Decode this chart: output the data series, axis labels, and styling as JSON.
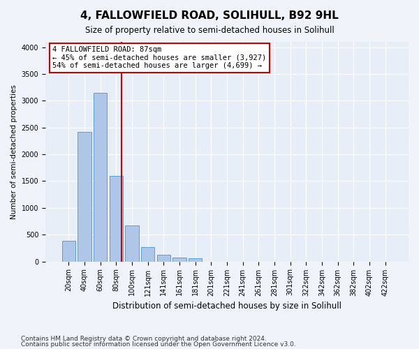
{
  "title1": "4, FALLOWFIELD ROAD, SOLIHULL, B92 9HL",
  "title2": "Size of property relative to semi-detached houses in Solihull",
  "xlabel": "Distribution of semi-detached houses by size in Solihull",
  "ylabel": "Number of semi-detached properties",
  "bar_labels": [
    "20sqm",
    "40sqm",
    "60sqm",
    "80sqm",
    "100sqm",
    "121sqm",
    "141sqm",
    "161sqm",
    "181sqm",
    "201sqm",
    "221sqm",
    "241sqm",
    "261sqm",
    "281sqm",
    "301sqm",
    "322sqm",
    "342sqm",
    "362sqm",
    "382sqm",
    "402sqm",
    "422sqm"
  ],
  "bar_values": [
    390,
    2420,
    3150,
    1600,
    670,
    270,
    120,
    70,
    60,
    0,
    0,
    0,
    0,
    0,
    0,
    0,
    0,
    0,
    0,
    0,
    0
  ],
  "bar_color": "#aec6e8",
  "bar_edge_color": "#5a9fd4",
  "property_line_x": 3.5,
  "property_sqm": 87,
  "annotation_text": "4 FALLOWFIELD ROAD: 87sqm\n← 45% of semi-detached houses are smaller (3,927)\n54% of semi-detached houses are larger (4,699) →",
  "annotation_box_color": "#ffffff",
  "annotation_box_edge_color": "#cc0000",
  "red_line_color": "#cc0000",
  "ylim": [
    0,
    4100
  ],
  "footer1": "Contains HM Land Registry data © Crown copyright and database right 2024.",
  "footer2": "Contains public sector information licensed under the Open Government Licence v3.0.",
  "background_color": "#e8eef7",
  "plot_bg_color": "#e8eef7"
}
